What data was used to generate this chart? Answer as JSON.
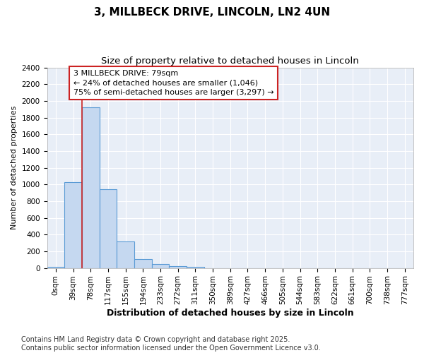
{
  "title": "3, MILLBECK DRIVE, LINCOLN, LN2 4UN",
  "subtitle": "Size of property relative to detached houses in Lincoln",
  "xlabel": "Distribution of detached houses by size in Lincoln",
  "ylabel": "Number of detached properties",
  "categories": [
    "0sqm",
    "39sqm",
    "78sqm",
    "117sqm",
    "155sqm",
    "194sqm",
    "233sqm",
    "272sqm",
    "311sqm",
    "350sqm",
    "389sqm",
    "427sqm",
    "466sqm",
    "505sqm",
    "544sqm",
    "583sqm",
    "622sqm",
    "661sqm",
    "700sqm",
    "738sqm",
    "777sqm"
  ],
  "values": [
    15,
    1030,
    1920,
    940,
    320,
    110,
    50,
    25,
    15,
    0,
    0,
    0,
    0,
    0,
    0,
    0,
    0,
    0,
    0,
    0,
    0
  ],
  "bar_color": "#c5d8f0",
  "bar_edge_color": "#5b9bd5",
  "vline_color": "#cc2222",
  "vline_x_idx": 2,
  "annotation_text": "3 MILLBECK DRIVE: 79sqm\n← 24% of detached houses are smaller (1,046)\n75% of semi-detached houses are larger (3,297) →",
  "annotation_box_edge": "#cc2222",
  "ylim": [
    0,
    2400
  ],
  "yticks": [
    0,
    200,
    400,
    600,
    800,
    1000,
    1200,
    1400,
    1600,
    1800,
    2000,
    2200,
    2400
  ],
  "bg_color": "#ffffff",
  "plot_bg_color": "#e8eef7",
  "grid_color": "#ffffff",
  "footer": "Contains HM Land Registry data © Crown copyright and database right 2025.\nContains public sector information licensed under the Open Government Licence v3.0.",
  "title_fontsize": 11,
  "subtitle_fontsize": 9.5,
  "xlabel_fontsize": 9,
  "ylabel_fontsize": 8,
  "tick_fontsize": 7.5,
  "footer_fontsize": 7,
  "annot_fontsize": 8
}
